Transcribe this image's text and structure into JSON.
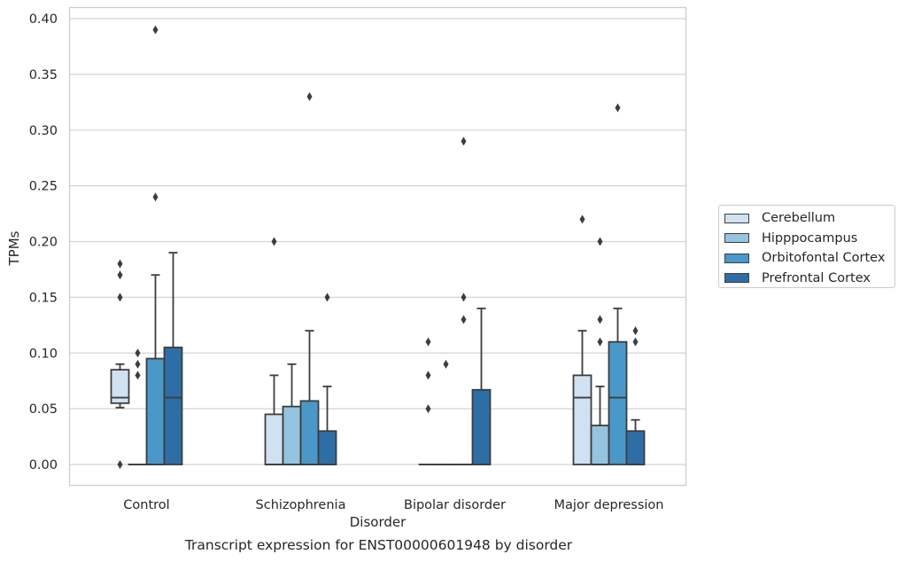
{
  "chart_data": {
    "type": "box",
    "caption": "Transcript expression for ENST00000601948 by disorder",
    "xlabel": "Disorder",
    "ylabel": "TPMs",
    "ylim": [
      -0.018,
      0.41
    ],
    "yticks": [
      0.0,
      0.05,
      0.1,
      0.15,
      0.2,
      0.25,
      0.3,
      0.35,
      0.4
    ],
    "ytick_labels": [
      "0.00",
      "0.05",
      "0.10",
      "0.15",
      "0.20",
      "0.25",
      "0.30",
      "0.35",
      "0.40"
    ],
    "grid": "horizontal",
    "legend_position": "right",
    "categories": [
      "Control",
      "Schizophrenia",
      "Bipolar disorder",
      "Major depression"
    ],
    "series": [
      {
        "name": "Cerebellum",
        "color": "#d0e1f2",
        "boxes": [
          {
            "q1": 0.055,
            "median": 0.06,
            "q3": 0.085,
            "whisker_low": 0.051,
            "whisker_high": 0.09,
            "outliers": [
              0.18,
              0.17,
              0.15,
              0.0
            ]
          },
          {
            "q1": 0.0,
            "median": 0.0,
            "q3": 0.045,
            "whisker_low": 0.0,
            "whisker_high": 0.08,
            "outliers": [
              0.2
            ]
          },
          {
            "q1": 0.0,
            "median": 0.0,
            "q3": 0.0,
            "whisker_low": 0.0,
            "whisker_high": 0.0,
            "outliers": [
              0.11,
              0.08,
              0.05
            ]
          },
          {
            "q1": 0.0,
            "median": 0.06,
            "q3": 0.08,
            "whisker_low": 0.0,
            "whisker_high": 0.12,
            "outliers": [
              0.22
            ]
          }
        ]
      },
      {
        "name": "Hipppocampus",
        "color": "#94c4df",
        "boxes": [
          {
            "q1": 0.0,
            "median": 0.0,
            "q3": 0.0,
            "whisker_low": 0.0,
            "whisker_high": 0.0,
            "outliers": [
              0.1,
              0.09,
              0.08
            ]
          },
          {
            "q1": 0.0,
            "median": 0.0,
            "q3": 0.052,
            "whisker_low": 0.0,
            "whisker_high": 0.09,
            "outliers": []
          },
          {
            "q1": 0.0,
            "median": 0.0,
            "q3": 0.0,
            "whisker_low": 0.0,
            "whisker_high": 0.0,
            "outliers": [
              0.09
            ]
          },
          {
            "q1": 0.0,
            "median": 0.0,
            "q3": 0.035,
            "whisker_low": 0.0,
            "whisker_high": 0.07,
            "outliers": [
              0.2,
              0.13,
              0.11
            ]
          }
        ]
      },
      {
        "name": "Orbitofontal Cortex",
        "color": "#4a98c9",
        "boxes": [
          {
            "q1": 0.0,
            "median": 0.0,
            "q3": 0.095,
            "whisker_low": 0.0,
            "whisker_high": 0.17,
            "outliers": [
              0.39,
              0.24
            ]
          },
          {
            "q1": 0.0,
            "median": 0.0,
            "q3": 0.057,
            "whisker_low": 0.0,
            "whisker_high": 0.12,
            "outliers": [
              0.33
            ]
          },
          {
            "q1": 0.0,
            "median": 0.0,
            "q3": 0.0,
            "whisker_low": 0.0,
            "whisker_high": 0.0,
            "outliers": [
              0.29,
              0.15,
              0.13
            ]
          },
          {
            "q1": 0.0,
            "median": 0.06,
            "q3": 0.11,
            "whisker_low": 0.0,
            "whisker_high": 0.14,
            "outliers": [
              0.32
            ]
          }
        ]
      },
      {
        "name": "Prefrontal Cortex",
        "color": "#2e6ea6",
        "boxes": [
          {
            "q1": 0.0,
            "median": 0.06,
            "q3": 0.105,
            "whisker_low": 0.0,
            "whisker_high": 0.19,
            "outliers": []
          },
          {
            "q1": 0.0,
            "median": 0.0,
            "q3": 0.03,
            "whisker_low": 0.0,
            "whisker_high": 0.07,
            "outliers": [
              0.15
            ]
          },
          {
            "q1": 0.0,
            "median": 0.0,
            "q3": 0.067,
            "whisker_low": 0.0,
            "whisker_high": 0.14,
            "outliers": []
          },
          {
            "q1": 0.0,
            "median": 0.0,
            "q3": 0.03,
            "whisker_low": 0.0,
            "whisker_high": 0.04,
            "outliers": [
              0.12,
              0.11
            ]
          }
        ]
      }
    ]
  }
}
